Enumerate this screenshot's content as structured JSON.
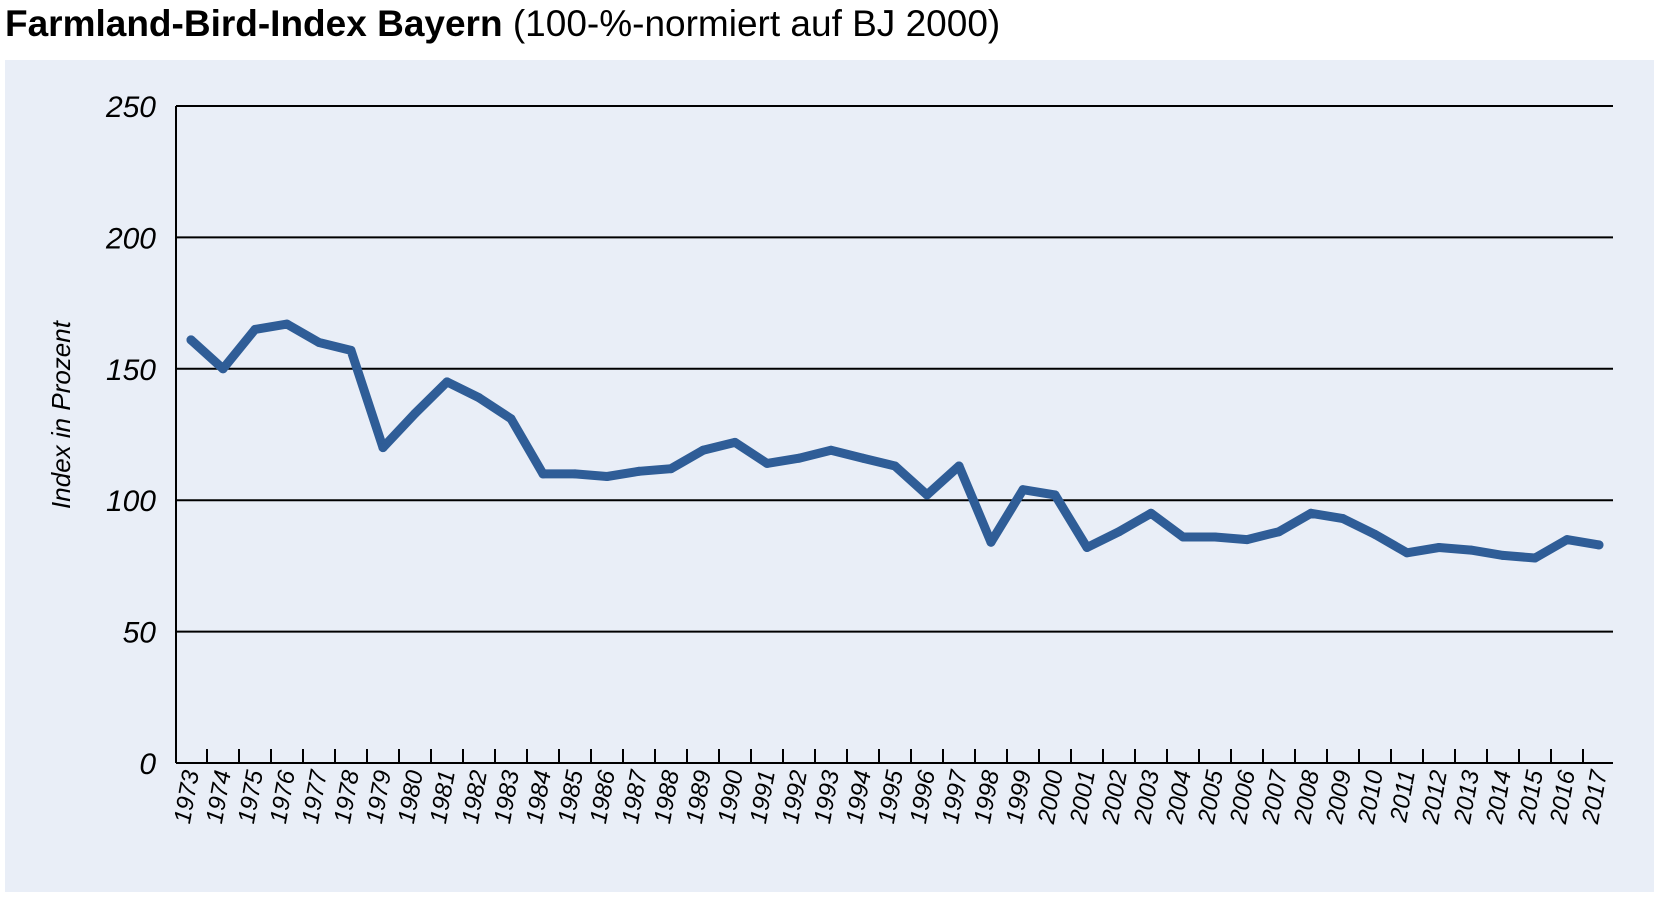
{
  "title": {
    "bold": "Farmland-Bird-Index Bayern",
    "normal": "(100-%-normiert auf BJ 2000)"
  },
  "colors": {
    "background": "#e9eef7",
    "line": "#2f5d97",
    "grid": "#000000"
  },
  "chart_data": {
    "type": "line",
    "title": "Farmland-Bird-Index Bayern (100-%-normiert auf BJ 2000)",
    "xlabel": "",
    "ylabel": "Index in Prozent",
    "ylim": [
      0,
      250
    ],
    "yticks": [
      "0",
      "50",
      "100",
      "150",
      "200",
      "250"
    ],
    "grid": "horizontal",
    "categories": [
      "1973",
      "1974",
      "1975",
      "1976",
      "1977",
      "1978",
      "1979",
      "1980",
      "1981",
      "1982",
      "1983",
      "1984",
      "1985",
      "1986",
      "1987",
      "1988",
      "1989",
      "1990",
      "1991",
      "1992",
      "1993",
      "1994",
      "1995",
      "1996",
      "1997",
      "1998",
      "1999",
      "2000",
      "2001",
      "2002",
      "2003",
      "2004",
      "2005",
      "2006",
      "2007",
      "2008",
      "2009",
      "2010",
      "2011",
      "2012",
      "2013",
      "2014",
      "2015",
      "2016",
      "2017"
    ],
    "series": [
      {
        "values": [
          161,
          150,
          165,
          167,
          160,
          157,
          120,
          133,
          145,
          139,
          131,
          110,
          110,
          109,
          111,
          112,
          119,
          122,
          114,
          116,
          119,
          116,
          113,
          102,
          113,
          84,
          104,
          102,
          82,
          88,
          95,
          86,
          86,
          85,
          88,
          95,
          93,
          87,
          80,
          82,
          81,
          79,
          78,
          85,
          83
        ]
      }
    ]
  }
}
